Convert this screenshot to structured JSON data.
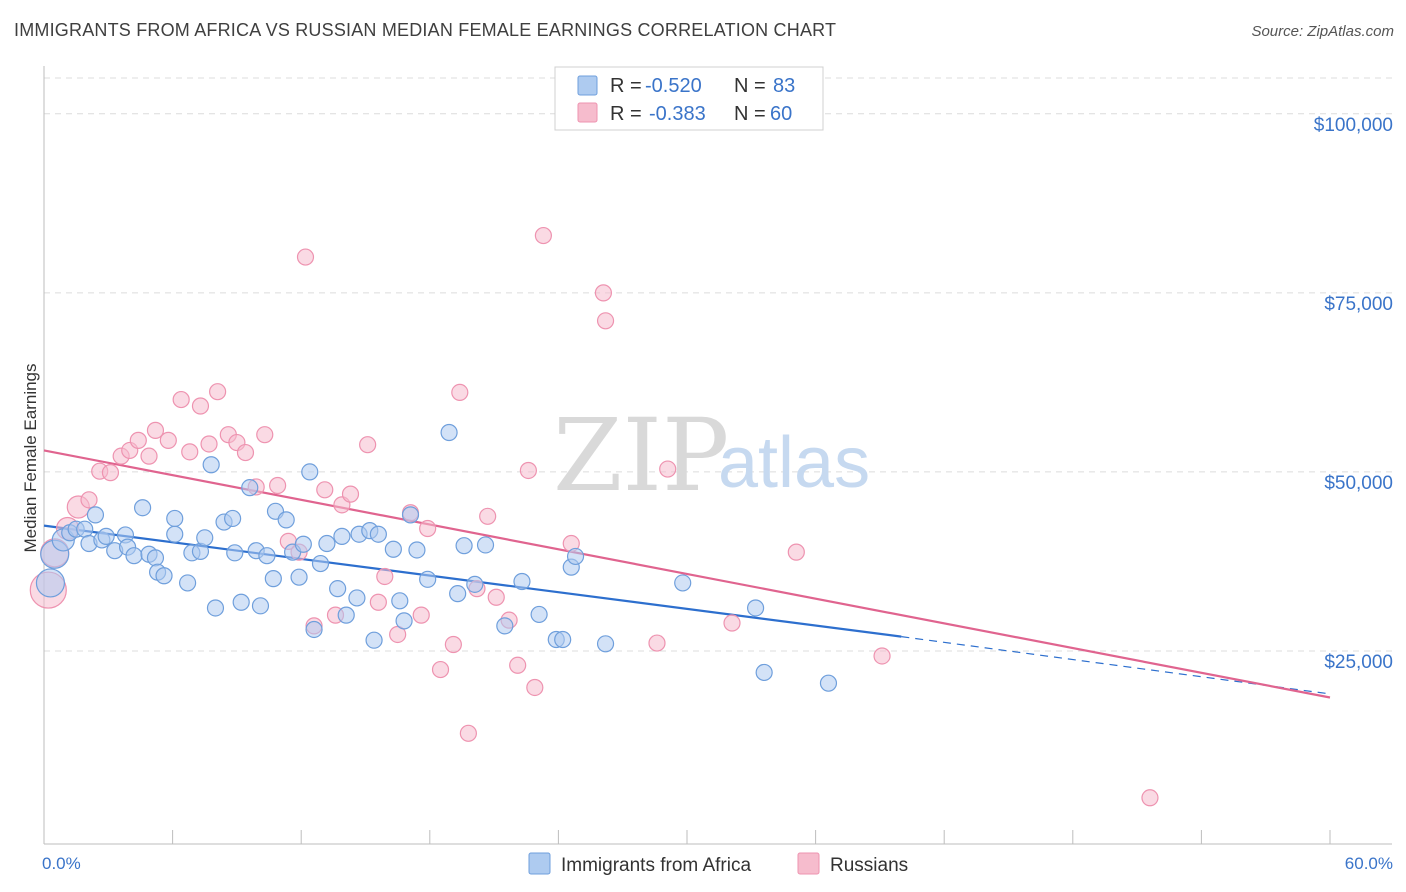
{
  "title": "IMMIGRANTS FROM AFRICA VS RUSSIAN MEDIAN FEMALE EARNINGS CORRELATION CHART",
  "source": "Source: ZipAtlas.com",
  "watermark": {
    "zip": "ZIP",
    "atlas": "atlas"
  },
  "colors": {
    "blue_fill": "#aecbf0",
    "blue_stroke": "#6f9fdc",
    "blue_line": "#2d6fce",
    "pink_fill": "#f6bccd",
    "pink_stroke": "#ee93b0",
    "pink_line": "#e0648f",
    "tick_color": "#3a74c9",
    "grid": "#dcdcdc"
  },
  "legend": {
    "rows": [
      {
        "r_label": "R =",
        "r_value": "-0.520",
        "n_label": "N =",
        "n_value": "83",
        "series": "blue"
      },
      {
        "r_label": "R =",
        "r_value": "-0.383",
        "n_label": "N =",
        "n_value": "60",
        "series": "pink"
      }
    ]
  },
  "chart_data": {
    "type": "scatter",
    "title": "IMMIGRANTS FROM AFRICA VS RUSSIAN MEDIAN FEMALE EARNINGS CORRELATION CHART",
    "xlabel": "",
    "ylabel": "Median Female Earnings",
    "xlim": [
      0,
      60
    ],
    "ylim": [
      0,
      105000
    ],
    "x_tick_labels": [
      "0.0%",
      "60.0%"
    ],
    "y_ticks": [
      25000,
      50000,
      75000,
      100000
    ],
    "y_tick_labels": [
      "$25,000",
      "$50,000",
      "$75,000",
      "$100,000"
    ],
    "grid": true,
    "legend_position": "bottom-center",
    "series": [
      {
        "name": "Immigrants from Africa",
        "color": "blue",
        "R": -0.52,
        "N": 83,
        "trend": {
          "x": [
            0,
            40
          ],
          "y": [
            42500,
            27000
          ],
          "dashed_to": [
            60,
            19000
          ]
        },
        "points": [
          [
            0.3,
            34500,
            "l"
          ],
          [
            0.5,
            38500,
            "l"
          ],
          [
            0.9,
            40500,
            "m"
          ],
          [
            1.2,
            41500
          ],
          [
            1.5,
            42000
          ],
          [
            1.9,
            42000
          ],
          [
            2.1,
            40000
          ],
          [
            2.4,
            44000
          ],
          [
            2.7,
            40500
          ],
          [
            2.9,
            41000
          ],
          [
            3.3,
            39000
          ],
          [
            3.8,
            41200
          ],
          [
            3.9,
            39500
          ],
          [
            4.2,
            38300
          ],
          [
            4.6,
            45000
          ],
          [
            4.9,
            38500
          ],
          [
            5.2,
            38000
          ],
          [
            5.3,
            36000
          ],
          [
            5.6,
            35500
          ],
          [
            6.1,
            41300
          ],
          [
            6.1,
            43500
          ],
          [
            6.7,
            34500
          ],
          [
            6.9,
            38700
          ],
          [
            7.3,
            38900
          ],
          [
            7.5,
            40800
          ],
          [
            7.8,
            51000
          ],
          [
            8.0,
            31000
          ],
          [
            8.4,
            43000
          ],
          [
            8.8,
            43500
          ],
          [
            8.9,
            38700
          ],
          [
            9.2,
            31800
          ],
          [
            9.6,
            47800
          ],
          [
            9.9,
            39000
          ],
          [
            10.1,
            31300
          ],
          [
            10.4,
            38300
          ],
          [
            10.7,
            35100
          ],
          [
            10.8,
            44500
          ],
          [
            11.3,
            43300
          ],
          [
            11.6,
            38800
          ],
          [
            11.9,
            35300
          ],
          [
            12.1,
            39900
          ],
          [
            12.4,
            50000
          ],
          [
            12.6,
            28000
          ],
          [
            12.9,
            37200
          ],
          [
            13.2,
            40000
          ],
          [
            13.7,
            33700
          ],
          [
            13.9,
            41000
          ],
          [
            14.1,
            30000
          ],
          [
            14.6,
            32400
          ],
          [
            14.7,
            41300
          ],
          [
            15.2,
            41800
          ],
          [
            15.4,
            26500
          ],
          [
            15.6,
            41300
          ],
          [
            16.3,
            39200
          ],
          [
            16.6,
            32000
          ],
          [
            16.8,
            29200
          ],
          [
            17.1,
            44000
          ],
          [
            17.4,
            39100
          ],
          [
            17.9,
            35000
          ],
          [
            18.9,
            55500
          ],
          [
            19.3,
            33000
          ],
          [
            19.6,
            39700
          ],
          [
            20.1,
            34300
          ],
          [
            20.6,
            39800
          ],
          [
            21.5,
            28500
          ],
          [
            22.3,
            34700
          ],
          [
            23.1,
            30100
          ],
          [
            23.9,
            26600
          ],
          [
            24.2,
            26600
          ],
          [
            24.6,
            36700
          ],
          [
            24.8,
            38200
          ],
          [
            26.2,
            26000
          ],
          [
            29.8,
            34500
          ],
          [
            33.2,
            31000
          ],
          [
            33.6,
            22000
          ],
          [
            36.6,
            20500
          ]
        ]
      },
      {
        "name": "Russians",
        "color": "pink",
        "R": -0.383,
        "N": 60,
        "trend": {
          "x": [
            0,
            60
          ],
          "y": [
            53000,
            18500
          ]
        },
        "points": [
          [
            0.2,
            33500,
            "xl"
          ],
          [
            0.5,
            38700,
            "l"
          ],
          [
            1.1,
            42100,
            "m"
          ],
          [
            1.6,
            45100,
            "m"
          ],
          [
            2.1,
            46100
          ],
          [
            2.6,
            50100
          ],
          [
            3.1,
            49900
          ],
          [
            3.6,
            52200
          ],
          [
            4.0,
            53000
          ],
          [
            4.4,
            54400
          ],
          [
            4.9,
            52200
          ],
          [
            5.2,
            55800
          ],
          [
            5.8,
            54400
          ],
          [
            6.4,
            60100
          ],
          [
            6.8,
            52800
          ],
          [
            7.3,
            59200
          ],
          [
            7.7,
            53900
          ],
          [
            8.1,
            61200
          ],
          [
            8.6,
            55200
          ],
          [
            9.0,
            54100
          ],
          [
            9.4,
            52700
          ],
          [
            9.9,
            47900
          ],
          [
            10.3,
            55200
          ],
          [
            10.9,
            48100
          ],
          [
            11.4,
            40300
          ],
          [
            11.9,
            38800
          ],
          [
            12.2,
            80000
          ],
          [
            12.6,
            28500
          ],
          [
            13.1,
            47500
          ],
          [
            13.6,
            30000
          ],
          [
            13.9,
            45400
          ],
          [
            14.3,
            46900
          ],
          [
            15.1,
            53800
          ],
          [
            15.6,
            31800
          ],
          [
            15.9,
            35400
          ],
          [
            16.5,
            27300
          ],
          [
            17.1,
            44300
          ],
          [
            17.6,
            30000
          ],
          [
            17.9,
            42100
          ],
          [
            18.5,
            22400
          ],
          [
            19.1,
            25900
          ],
          [
            19.4,
            61100
          ],
          [
            19.8,
            13500
          ],
          [
            20.2,
            33700
          ],
          [
            20.7,
            43800
          ],
          [
            21.1,
            32500
          ],
          [
            21.7,
            29300
          ],
          [
            22.1,
            23000
          ],
          [
            22.6,
            50200
          ],
          [
            22.9,
            19900
          ],
          [
            23.3,
            83000
          ],
          [
            24.6,
            40000
          ],
          [
            26.1,
            75000
          ],
          [
            26.2,
            71100
          ],
          [
            28.6,
            26100
          ],
          [
            29.1,
            50400
          ],
          [
            32.1,
            28900
          ],
          [
            35.1,
            38800
          ],
          [
            39.1,
            24300
          ],
          [
            51.6,
            4500
          ]
        ]
      }
    ]
  }
}
